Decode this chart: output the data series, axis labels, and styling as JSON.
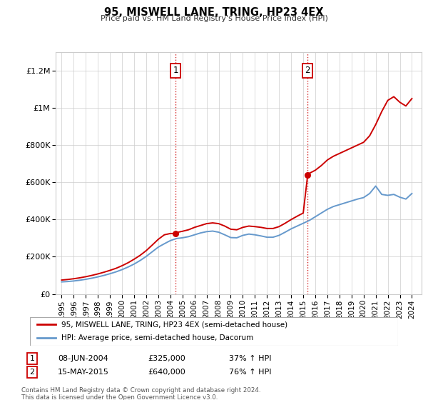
{
  "title": "95, MISWELL LANE, TRING, HP23 4EX",
  "subtitle": "Price paid vs. HM Land Registry's House Price Index (HPI)",
  "ylabel_ticks": [
    "£0",
    "£200K",
    "£400K",
    "£600K",
    "£800K",
    "£1M",
    "£1.2M"
  ],
  "ytick_vals": [
    0,
    200000,
    400000,
    600000,
    800000,
    1000000,
    1200000
  ],
  "ylim": [
    0,
    1300000
  ],
  "xlim_start": 1994.5,
  "xlim_end": 2024.8,
  "red_line_color": "#cc0000",
  "blue_line_color": "#6699cc",
  "vline_color": "#cc0000",
  "legend_label_red": "95, MISWELL LANE, TRING, HP23 4EX (semi-detached house)",
  "legend_label_blue": "HPI: Average price, semi-detached house, Dacorum",
  "sale1_date": "08-JUN-2004",
  "sale1_price": "£325,000",
  "sale1_pct": "37% ↑ HPI",
  "sale1_year": 2004.44,
  "sale2_date": "15-MAY-2015",
  "sale2_price": "£640,000",
  "sale2_pct": "76% ↑ HPI",
  "sale2_year": 2015.37,
  "footnote": "Contains HM Land Registry data © Crown copyright and database right 2024.\nThis data is licensed under the Open Government Licence v3.0.",
  "red_data_years": [
    1995.0,
    1995.5,
    1996.0,
    1996.5,
    1997.0,
    1997.5,
    1998.0,
    1998.5,
    1999.0,
    1999.5,
    2000.0,
    2000.5,
    2001.0,
    2001.5,
    2002.0,
    2002.5,
    2003.0,
    2003.5,
    2004.0,
    2004.44,
    2004.5,
    2005.0,
    2005.5,
    2006.0,
    2006.5,
    2007.0,
    2007.5,
    2008.0,
    2008.5,
    2009.0,
    2009.5,
    2010.0,
    2010.5,
    2011.0,
    2011.5,
    2012.0,
    2012.5,
    2013.0,
    2013.5,
    2014.0,
    2014.5,
    2015.0,
    2015.37,
    2015.5,
    2016.0,
    2016.5,
    2017.0,
    2017.5,
    2018.0,
    2018.5,
    2019.0,
    2019.5,
    2020.0,
    2020.5,
    2021.0,
    2021.5,
    2022.0,
    2022.5,
    2023.0,
    2023.5,
    2024.0
  ],
  "red_data_values": [
    75000,
    78000,
    82000,
    87000,
    93000,
    100000,
    108000,
    117000,
    127000,
    138000,
    152000,
    168000,
    187000,
    208000,
    233000,
    263000,
    294000,
    318000,
    325000,
    325000,
    330000,
    337000,
    345000,
    358000,
    368000,
    378000,
    382000,
    378000,
    365000,
    348000,
    345000,
    358000,
    365000,
    362000,
    358000,
    352000,
    352000,
    362000,
    380000,
    400000,
    418000,
    435000,
    640000,
    648000,
    665000,
    690000,
    720000,
    740000,
    755000,
    770000,
    785000,
    800000,
    815000,
    850000,
    910000,
    980000,
    1040000,
    1060000,
    1030000,
    1010000,
    1050000
  ],
  "blue_data_years": [
    1995.0,
    1995.5,
    1996.0,
    1996.5,
    1997.0,
    1997.5,
    1998.0,
    1998.5,
    1999.0,
    1999.5,
    2000.0,
    2000.5,
    2001.0,
    2001.5,
    2002.0,
    2002.5,
    2003.0,
    2003.5,
    2004.0,
    2004.5,
    2005.0,
    2005.5,
    2006.0,
    2006.5,
    2007.0,
    2007.5,
    2008.0,
    2008.5,
    2009.0,
    2009.5,
    2010.0,
    2010.5,
    2011.0,
    2011.5,
    2012.0,
    2012.5,
    2013.0,
    2013.5,
    2014.0,
    2014.5,
    2015.0,
    2015.5,
    2016.0,
    2016.5,
    2017.0,
    2017.5,
    2018.0,
    2018.5,
    2019.0,
    2019.5,
    2020.0,
    2020.5,
    2021.0,
    2021.5,
    2022.0,
    2022.5,
    2023.0,
    2023.5,
    2024.0
  ],
  "blue_data_values": [
    65000,
    67000,
    70000,
    74000,
    79000,
    85000,
    92000,
    100000,
    109000,
    119000,
    131000,
    145000,
    161000,
    180000,
    202000,
    227000,
    252000,
    270000,
    287000,
    298000,
    302000,
    308000,
    318000,
    328000,
    335000,
    338000,
    332000,
    318000,
    303000,
    302000,
    315000,
    322000,
    318000,
    312000,
    305000,
    305000,
    315000,
    332000,
    350000,
    365000,
    380000,
    395000,
    415000,
    435000,
    455000,
    470000,
    480000,
    490000,
    500000,
    510000,
    518000,
    540000,
    580000,
    535000,
    530000,
    535000,
    520000,
    510000,
    540000
  ]
}
